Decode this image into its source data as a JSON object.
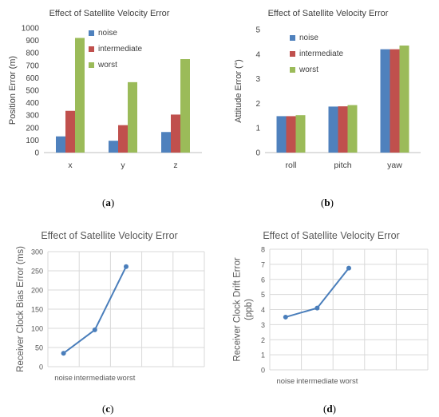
{
  "colors": {
    "noise": "#4F81BD",
    "intermediate": "#C0504D",
    "worst": "#9BBB59",
    "line": "#4A7EBB",
    "grid": "#d9d9d9",
    "axis": "#bfbfbf"
  },
  "captions": {
    "a": "a",
    "b": "b",
    "c": "c",
    "d": "d"
  },
  "panels": [
    {
      "id": "a",
      "title": "Effect of Satellite Velocity Error",
      "legend": [
        "noise",
        "intermediate",
        "worst"
      ],
      "chart_data": {
        "type": "bar",
        "title": "Effect of Satellite Velocity Error",
        "ylabel": "Position Error (m)",
        "xlabel": "",
        "categories": [
          "x",
          "y",
          "z"
        ],
        "series": [
          {
            "name": "noise",
            "values": [
              130,
              95,
              165
            ]
          },
          {
            "name": "intermediate",
            "values": [
              335,
              220,
              305
            ]
          },
          {
            "name": "worst",
            "values": [
              920,
              565,
              750
            ]
          }
        ],
        "ylim": [
          0,
          1000
        ],
        "yticks": [
          "0",
          "100",
          "200",
          "300",
          "400",
          "500",
          "600",
          "700",
          "800",
          "900",
          "1000"
        ],
        "grid": false,
        "legend": "top-left"
      }
    },
    {
      "id": "b",
      "title": "Effect of Satellite Velocity Error",
      "legend": [
        "noise",
        "intermediate",
        "worst"
      ],
      "chart_data": {
        "type": "bar",
        "title": "Effect of Satellite Velocity Error",
        "ylabel": "Attitude Error (°)",
        "xlabel": "",
        "categories": [
          "roll",
          "pitch",
          "yaw"
        ],
        "series": [
          {
            "name": "noise",
            "values": [
              1.48,
              1.87,
              4.2
            ]
          },
          {
            "name": "intermediate",
            "values": [
              1.48,
              1.88,
              4.2
            ]
          },
          {
            "name": "worst",
            "values": [
              1.52,
              1.93,
              4.35
            ]
          }
        ],
        "ylim": [
          0,
          5
        ],
        "yticks": [
          "0",
          "1",
          "2",
          "3",
          "4",
          "5"
        ],
        "grid": false,
        "legend": "top-left"
      }
    },
    {
      "id": "c",
      "title": "Effect of  Satellite Velocity Error",
      "chart_data": {
        "type": "line",
        "title": "Effect of  Satellite Velocity Error",
        "ylabel": "Receiver  Clock Bias Error (ms)",
        "xlabel": "",
        "categories": [
          "noise",
          "intermediate",
          "worst"
        ],
        "series": [
          {
            "values": [
              35,
              96,
              261
            ]
          }
        ],
        "ylim": [
          0,
          300
        ],
        "yticks": [
          "0",
          "50",
          "100",
          "150",
          "200",
          "250",
          "300"
        ],
        "grid": true
      }
    },
    {
      "id": "d",
      "title": "Effect of  Satellite Velocity Error",
      "chart_data": {
        "type": "line",
        "title": "Effect of  Satellite Velocity Error",
        "ylabel": "Receiver Clock Drift Error (ppb)",
        "xlabel": "",
        "categories": [
          "noise",
          "intermediate",
          "worst"
        ],
        "series": [
          {
            "values": [
              3.5,
              4.1,
              6.75
            ]
          }
        ],
        "ylim": [
          0,
          8
        ],
        "yticks": [
          "0",
          "1",
          "2",
          "3",
          "4",
          "5",
          "6",
          "7",
          "8"
        ],
        "grid": true
      }
    }
  ]
}
